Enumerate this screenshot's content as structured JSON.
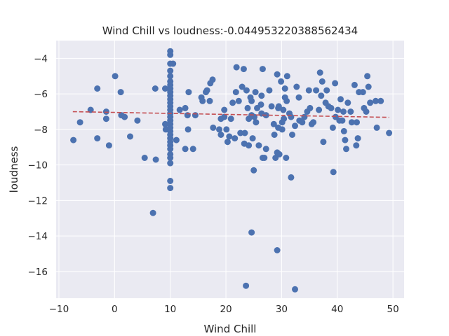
{
  "chart_data": {
    "type": "scatter",
    "title": "Wind Chill vs loudness:-0.044953220388562434",
    "xlabel": "Wind Chill",
    "ylabel": "loudness",
    "xlim": [
      -10.5,
      52
    ],
    "ylim": [
      -17.5,
      -3
    ],
    "xticks": [
      -10,
      0,
      10,
      20,
      30,
      40,
      50
    ],
    "yticks": [
      -16,
      -14,
      -12,
      -10,
      -8,
      -6,
      -4
    ],
    "grid": true,
    "colors": {
      "points": "#4c72b0",
      "trend": "#c44e52",
      "background": "#eaeaf2",
      "grid": "#ffffff"
    },
    "trend_line": {
      "style": "dashed",
      "x": [
        -7.5,
        49.3
      ],
      "y": [
        -7.0,
        -7.32
      ]
    },
    "points": [
      [
        -7.4,
        -8.6
      ],
      [
        -6.2,
        -7.6
      ],
      [
        -4.3,
        -6.9
      ],
      [
        -3.1,
        -5.7
      ],
      [
        -3.1,
        -8.5
      ],
      [
        -1.5,
        -7.0
      ],
      [
        -1.5,
        -7.4
      ],
      [
        -1.0,
        -8.9
      ],
      [
        0.1,
        -5.0
      ],
      [
        1.1,
        -5.9
      ],
      [
        1.2,
        -7.2
      ],
      [
        1.8,
        -7.3
      ],
      [
        2.8,
        -8.4
      ],
      [
        4.1,
        -7.5
      ],
      [
        5.4,
        -9.6
      ],
      [
        6.9,
        -12.7
      ],
      [
        7.3,
        -5.7
      ],
      [
        7.4,
        -9.7
      ],
      [
        9.1,
        -5.7
      ],
      [
        9.1,
        -7.7
      ],
      [
        9.2,
        -8.0
      ],
      [
        10,
        -3.6
      ],
      [
        10,
        -3.8
      ],
      [
        10,
        -4.3
      ],
      [
        10,
        -4.7
      ],
      [
        10,
        -5.0
      ],
      [
        10,
        -5.3
      ],
      [
        10,
        -5.5
      ],
      [
        10,
        -5.7
      ],
      [
        10,
        -5.9
      ],
      [
        10,
        -6.1
      ],
      [
        10,
        -6.3
      ],
      [
        10,
        -6.5
      ],
      [
        10,
        -6.7
      ],
      [
        10,
        -6.9
      ],
      [
        10,
        -7.1
      ],
      [
        10,
        -7.3
      ],
      [
        10,
        -7.5
      ],
      [
        10,
        -7.7
      ],
      [
        10,
        -7.9
      ],
      [
        10,
        -8.1
      ],
      [
        10,
        -8.3
      ],
      [
        10,
        -8.5
      ],
      [
        10,
        -8.7
      ],
      [
        10,
        -8.9
      ],
      [
        10,
        -9.1
      ],
      [
        10,
        -9.4
      ],
      [
        10,
        -9.6
      ],
      [
        10,
        -9.9
      ],
      [
        10,
        -10.9
      ],
      [
        10,
        -11.3
      ],
      [
        10.5,
        -4.3
      ],
      [
        11.1,
        -8.6
      ],
      [
        11.7,
        -6.9
      ],
      [
        12.7,
        -6.8
      ],
      [
        12.7,
        -9.1
      ],
      [
        13.1,
        -7.2
      ],
      [
        13.2,
        -8.0
      ],
      [
        13.3,
        -5.9
      ],
      [
        14.1,
        -9.1
      ],
      [
        14.5,
        -7.2
      ],
      [
        15.6,
        -6.2
      ],
      [
        15.8,
        -6.4
      ],
      [
        16.4,
        -5.9
      ],
      [
        16.6,
        -5.8
      ],
      [
        17.1,
        -6.4
      ],
      [
        17.2,
        -5.4
      ],
      [
        17.6,
        -5.2
      ],
      [
        17.7,
        -7.9
      ],
      [
        18.8,
        -8.0
      ],
      [
        19.1,
        -7.4
      ],
      [
        19.1,
        -8.3
      ],
      [
        19.7,
        -6.9
      ],
      [
        19.7,
        -7.3
      ],
      [
        20.1,
        -8.0
      ],
      [
        20.3,
        -8.7
      ],
      [
        20.6,
        -8.4
      ],
      [
        20.9,
        -7.4
      ],
      [
        21.2,
        -6.5
      ],
      [
        21.6,
        -8.5
      ],
      [
        21.8,
        -5.9
      ],
      [
        21.9,
        -4.5
      ],
      [
        22.3,
        -6.4
      ],
      [
        22.6,
        -8.2
      ],
      [
        22.9,
        -5.6
      ],
      [
        23.2,
        -4.6
      ],
      [
        23.3,
        -8.8
      ],
      [
        23.4,
        -8.2
      ],
      [
        23.6,
        -16.8
      ],
      [
        23.7,
        -5.8
      ],
      [
        23.9,
        -6.8
      ],
      [
        24.1,
        -8.9
      ],
      [
        24.1,
        -7.4
      ],
      [
        24.4,
        -6.2
      ],
      [
        24.6,
        -6.4
      ],
      [
        24.6,
        -13.8
      ],
      [
        24.6,
        -7.2
      ],
      [
        24.8,
        -8.5
      ],
      [
        25.0,
        -10.3
      ],
      [
        25.1,
        -7.3
      ],
      [
        25.3,
        -5.9
      ],
      [
        25.4,
        -7.6
      ],
      [
        25.6,
        -6.8
      ],
      [
        25.9,
        -8.9
      ],
      [
        26.3,
        -6.6
      ],
      [
        26.4,
        -7.1
      ],
      [
        26.4,
        -6.1
      ],
      [
        26.6,
        -9.6
      ],
      [
        26.6,
        -4.6
      ],
      [
        26.9,
        -9.6
      ],
      [
        27.2,
        -7.2
      ],
      [
        27.2,
        -9.1
      ],
      [
        27.8,
        -5.8
      ],
      [
        28.2,
        -6.7
      ],
      [
        28.6,
        -7.7
      ],
      [
        28.7,
        -8.3
      ],
      [
        28.9,
        -9.6
      ],
      [
        29.2,
        -9.3
      ],
      [
        29.2,
        -14.8
      ],
      [
        29.2,
        -4.9
      ],
      [
        29.4,
        -6.8
      ],
      [
        29.4,
        -7.9
      ],
      [
        29.5,
        -6.7
      ],
      [
        29.6,
        -9.4
      ],
      [
        29.9,
        -5.3
      ],
      [
        30.1,
        -7.6
      ],
      [
        30.1,
        -8.0
      ],
      [
        30.3,
        -6.9
      ],
      [
        30.4,
        -7.4
      ],
      [
        30.6,
        -6.2
      ],
      [
        30.6,
        -5.7
      ],
      [
        30.8,
        -9.6
      ],
      [
        30.9,
        -6.4
      ],
      [
        31.0,
        -5.0
      ],
      [
        31.4,
        -7.1
      ],
      [
        31.7,
        -10.7
      ],
      [
        31.7,
        -7.3
      ],
      [
        31.9,
        -8.3
      ],
      [
        32.4,
        -17.0
      ],
      [
        32.4,
        -7.8
      ],
      [
        32.7,
        -5.6
      ],
      [
        33.1,
        -6.2
      ],
      [
        33.2,
        -7.5
      ],
      [
        33.7,
        -7.6
      ],
      [
        34.1,
        -7.3
      ],
      [
        34.6,
        -7.0
      ],
      [
        34.9,
        -5.8
      ],
      [
        35.1,
        -6.8
      ],
      [
        35.4,
        -7.7
      ],
      [
        35.7,
        -7.6
      ],
      [
        36.2,
        -5.8
      ],
      [
        36.7,
        -6.9
      ],
      [
        36.9,
        -4.8
      ],
      [
        37.1,
        -6.1
      ],
      [
        37.3,
        -5.3
      ],
      [
        37.5,
        -8.7
      ],
      [
        37.9,
        -6.5
      ],
      [
        38.1,
        -5.8
      ],
      [
        38.4,
        -6.7
      ],
      [
        38.9,
        -6.8
      ],
      [
        39.2,
        -7.9
      ],
      [
        39.3,
        -10.4
      ],
      [
        39.6,
        -5.4
      ],
      [
        39.7,
        -7.3
      ],
      [
        40.1,
        -6.9
      ],
      [
        40.4,
        -7.5
      ],
      [
        40.6,
        -6.3
      ],
      [
        40.9,
        -7.5
      ],
      [
        41.1,
        -7.0
      ],
      [
        41.2,
        -8.1
      ],
      [
        41.4,
        -8.6
      ],
      [
        41.6,
        -9.1
      ],
      [
        41.9,
        -6.5
      ],
      [
        42.4,
        -7.0
      ],
      [
        42.6,
        -7.6
      ],
      [
        43.1,
        -5.5
      ],
      [
        43.4,
        -8.9
      ],
      [
        43.5,
        -7.6
      ],
      [
        43.7,
        -8.5
      ],
      [
        43.9,
        -5.9
      ],
      [
        44.6,
        -5.9
      ],
      [
        44.8,
        -6.8
      ],
      [
        45.2,
        -7.0
      ],
      [
        45.4,
        -5.0
      ],
      [
        45.6,
        -5.6
      ],
      [
        45.9,
        -6.5
      ],
      [
        46.9,
        -6.4
      ],
      [
        47.1,
        -7.9
      ],
      [
        47.8,
        -6.4
      ],
      [
        49.3,
        -8.2
      ]
    ]
  }
}
